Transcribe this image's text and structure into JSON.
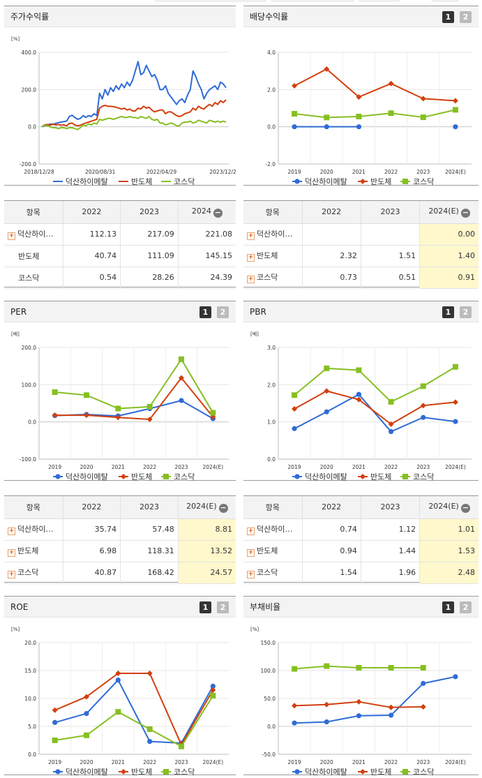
{
  "panels": {
    "price": {
      "title": "주가수익률"
    },
    "dividend": {
      "title": "배당수익률",
      "tab1": "1",
      "tab2": "2"
    },
    "per": {
      "title": "PER",
      "tab1": "1",
      "tab2": "2"
    },
    "pbr": {
      "title": "PBR",
      "tab1": "1",
      "tab2": "2"
    },
    "roe": {
      "title": "ROE",
      "tab1": "1",
      "tab2": "2"
    },
    "debt": {
      "title": "부채비율",
      "tab1": "1",
      "tab2": "2"
    }
  },
  "colors": {
    "company": "#2f6bd6",
    "semi": "#d23f0e",
    "kosdaq": "#86bf22"
  },
  "tables": {
    "price": {
      "headers": [
        "항목",
        "2022",
        "2023",
        "2024"
      ],
      "rows": [
        {
          "name": "덕산하이…",
          "plus": true,
          "values": [
            "112.13",
            "217.09",
            "221.08"
          ]
        },
        {
          "name": "반도체",
          "plus": false,
          "values": [
            "40.74",
            "111.09",
            "145.15"
          ]
        },
        {
          "name": "코스닥",
          "plus": false,
          "values": [
            "0.54",
            "28.26",
            "24.39"
          ]
        }
      ]
    },
    "dividend": {
      "headers": [
        "항목",
        "2022",
        "2023",
        "2024(E)"
      ],
      "rows": [
        {
          "name": "덕산하이…",
          "plus": true,
          "values": [
            "",
            "",
            "0.00"
          ]
        },
        {
          "name": "반도체",
          "plus": true,
          "values": [
            "2.32",
            "1.51",
            "1.40"
          ]
        },
        {
          "name": "코스닥",
          "plus": true,
          "values": [
            "0.73",
            "0.51",
            "0.91"
          ]
        }
      ]
    },
    "per": {
      "headers": [
        "항목",
        "2022",
        "2023",
        "2024(E)"
      ],
      "rows": [
        {
          "name": "덕산하이…",
          "plus": true,
          "values": [
            "35.74",
            "57.48",
            "8.81"
          ]
        },
        {
          "name": "반도체",
          "plus": true,
          "values": [
            "6.98",
            "118.31",
            "13.52"
          ]
        },
        {
          "name": "코스닥",
          "plus": true,
          "values": [
            "40.87",
            "168.42",
            "24.57"
          ]
        }
      ]
    },
    "pbr": {
      "headers": [
        "항목",
        "2022",
        "2023",
        "2024(E)"
      ],
      "rows": [
        {
          "name": "덕산하이…",
          "plus": true,
          "values": [
            "0.74",
            "1.12",
            "1.01"
          ]
        },
        {
          "name": "반도체",
          "plus": true,
          "values": [
            "0.94",
            "1.44",
            "1.53"
          ]
        },
        {
          "name": "코스닥",
          "plus": true,
          "values": [
            "1.54",
            "1.96",
            "2.48"
          ]
        }
      ]
    }
  },
  "chart_data": [
    {
      "id": "price",
      "type": "line",
      "title": "주가수익률",
      "unit": "[%]",
      "ylim": [
        -200,
        400
      ],
      "yticks": [
        "400.0",
        "200.0",
        "0.0",
        "-200.0"
      ],
      "x_labels": [
        "2018/12/28",
        "2020/08/31",
        "2022/04/29",
        "2023/12/28"
      ],
      "legend": "bottom",
      "series": [
        {
          "name": "덕산하이메탈",
          "marker": "none",
          "values": [
            0,
            5,
            8,
            15,
            12,
            18,
            22,
            25,
            28,
            30,
            55,
            62,
            50,
            40,
            45,
            60,
            50,
            60,
            55,
            70,
            60,
            180,
            150,
            200,
            170,
            210,
            190,
            220,
            200,
            230,
            210,
            240,
            220,
            250,
            300,
            350,
            280,
            290,
            330,
            300,
            270,
            280,
            250,
            200,
            200,
            220,
            180,
            160,
            140,
            120,
            140,
            150,
            130,
            170,
            200,
            300,
            270,
            230,
            200,
            150,
            180,
            200,
            210,
            220,
            200,
            240,
            230,
            210
          ]
        },
        {
          "name": "반도체",
          "marker": "none",
          "values": [
            0,
            10,
            12,
            8,
            15,
            10,
            12,
            8,
            10,
            5,
            18,
            20,
            10,
            5,
            8,
            15,
            20,
            25,
            30,
            35,
            40,
            100,
            110,
            115,
            110,
            110,
            108,
            105,
            100,
            95,
            100,
            90,
            95,
            85,
            85,
            100,
            95,
            110,
            100,
            105,
            90,
            80,
            85,
            90,
            90,
            70,
            80,
            80,
            70,
            60,
            55,
            60,
            70,
            75,
            80,
            100,
            90,
            110,
            100,
            95,
            110,
            120,
            110,
            130,
            120,
            140,
            130,
            145
          ]
        },
        {
          "name": "코스닥",
          "marker": "none",
          "values": [
            0,
            8,
            5,
            0,
            -5,
            -5,
            -10,
            -5,
            -5,
            -10,
            -5,
            -5,
            -10,
            -15,
            -5,
            10,
            5,
            15,
            10,
            20,
            15,
            40,
            35,
            40,
            45,
            45,
            40,
            45,
            50,
            55,
            50,
            50,
            55,
            50,
            50,
            45,
            55,
            50,
            45,
            55,
            40,
            35,
            40,
            20,
            20,
            10,
            15,
            20,
            15,
            5,
            5,
            20,
            25,
            25,
            30,
            20,
            25,
            35,
            30,
            25,
            20,
            35,
            30,
            25,
            30,
            25,
            30,
            25
          ]
        }
      ]
    },
    {
      "id": "dividend",
      "type": "line",
      "title": "배당수익률",
      "ylim": [
        -2,
        4
      ],
      "yticks": [
        "4.0",
        "2.0",
        "0.0",
        "-2.0"
      ],
      "categories": [
        "2019",
        "2020",
        "2021",
        "2022",
        "2023",
        "2024(E)"
      ],
      "legend": "bottom",
      "series": [
        {
          "name": "덕산하이메탈",
          "marker": "circle",
          "values": [
            0.0,
            0.0,
            0.0,
            null,
            null,
            0.0
          ]
        },
        {
          "name": "반도체",
          "marker": "diamond",
          "values": [
            2.2,
            3.1,
            1.6,
            2.32,
            1.51,
            1.4
          ]
        },
        {
          "name": "코스닥",
          "marker": "square",
          "values": [
            0.7,
            0.5,
            0.55,
            0.73,
            0.51,
            0.91
          ]
        }
      ]
    },
    {
      "id": "per",
      "type": "line",
      "title": "PER",
      "unit": "[배]",
      "ylim": [
        -100,
        200
      ],
      "yticks": [
        "200.0",
        "100.0",
        "0.0",
        "-100.0"
      ],
      "categories": [
        "2019",
        "2020",
        "2021",
        "2022",
        "2023",
        "2024(E)"
      ],
      "legend": "bottom",
      "series": [
        {
          "name": "덕산하이메탈",
          "marker": "circle",
          "values": [
            17,
            20,
            16,
            35.74,
            57.48,
            8.81
          ]
        },
        {
          "name": "반도체",
          "marker": "diamond",
          "values": [
            18,
            18,
            12,
            6.98,
            118.31,
            13.52
          ]
        },
        {
          "name": "코스닥",
          "marker": "square",
          "values": [
            80,
            72,
            36,
            40.87,
            168.42,
            24.57
          ]
        }
      ]
    },
    {
      "id": "pbr",
      "type": "line",
      "title": "PBR",
      "unit": "[배]",
      "ylim": [
        0,
        3
      ],
      "yticks": [
        "3.0",
        "2.0",
        "1.0",
        "0.0"
      ],
      "categories": [
        "2019",
        "2020",
        "2021",
        "2022",
        "2023",
        "2024(E)"
      ],
      "legend": "bottom",
      "series": [
        {
          "name": "덕산하이메탈",
          "marker": "circle",
          "values": [
            0.82,
            1.27,
            1.74,
            0.74,
            1.12,
            1.01
          ]
        },
        {
          "name": "반도체",
          "marker": "diamond",
          "values": [
            1.35,
            1.83,
            1.6,
            0.94,
            1.44,
            1.53
          ]
        },
        {
          "name": "코스닥",
          "marker": "square",
          "values": [
            1.72,
            2.44,
            2.39,
            1.54,
            1.96,
            2.48
          ]
        }
      ]
    },
    {
      "id": "roe",
      "type": "line",
      "title": "ROE",
      "unit": "[%]",
      "ylim": [
        0,
        20
      ],
      "yticks": [
        "20.0",
        "15.0",
        "10.0",
        "5.0",
        "0.0"
      ],
      "categories": [
        "2019",
        "2020",
        "2021",
        "2022",
        "2023",
        "2024(E)"
      ],
      "legend": "bottom",
      "series": [
        {
          "name": "덕산하이메탈",
          "marker": "circle",
          "values": [
            5.7,
            7.3,
            13.3,
            2.3,
            2.0,
            12.2
          ]
        },
        {
          "name": "반도체",
          "marker": "diamond",
          "values": [
            7.9,
            10.3,
            14.5,
            14.5,
            1.7,
            11.5
          ]
        },
        {
          "name": "코스닥",
          "marker": "square",
          "values": [
            2.5,
            3.4,
            7.6,
            4.5,
            1.4,
            10.5
          ]
        }
      ]
    },
    {
      "id": "debt",
      "type": "line",
      "title": "부채비율",
      "unit": "[%]",
      "ylim": [
        -50,
        150
      ],
      "yticks": [
        "150.0",
        "100.0",
        "50.0",
        "0.0",
        "-50.0"
      ],
      "categories": [
        "2019",
        "2020",
        "2021",
        "2022",
        "2023",
        "2024(E)"
      ],
      "legend": "bottom",
      "series": [
        {
          "name": "덕산하이메탈",
          "marker": "circle",
          "values": [
            6,
            8,
            19,
            20,
            77,
            89
          ]
        },
        {
          "name": "반도체",
          "marker": "diamond",
          "values": [
            37,
            39,
            44,
            34,
            35,
            null
          ]
        },
        {
          "name": "코스닥",
          "marker": "square",
          "values": [
            103,
            108,
            105,
            105,
            105,
            null
          ]
        }
      ]
    }
  ]
}
